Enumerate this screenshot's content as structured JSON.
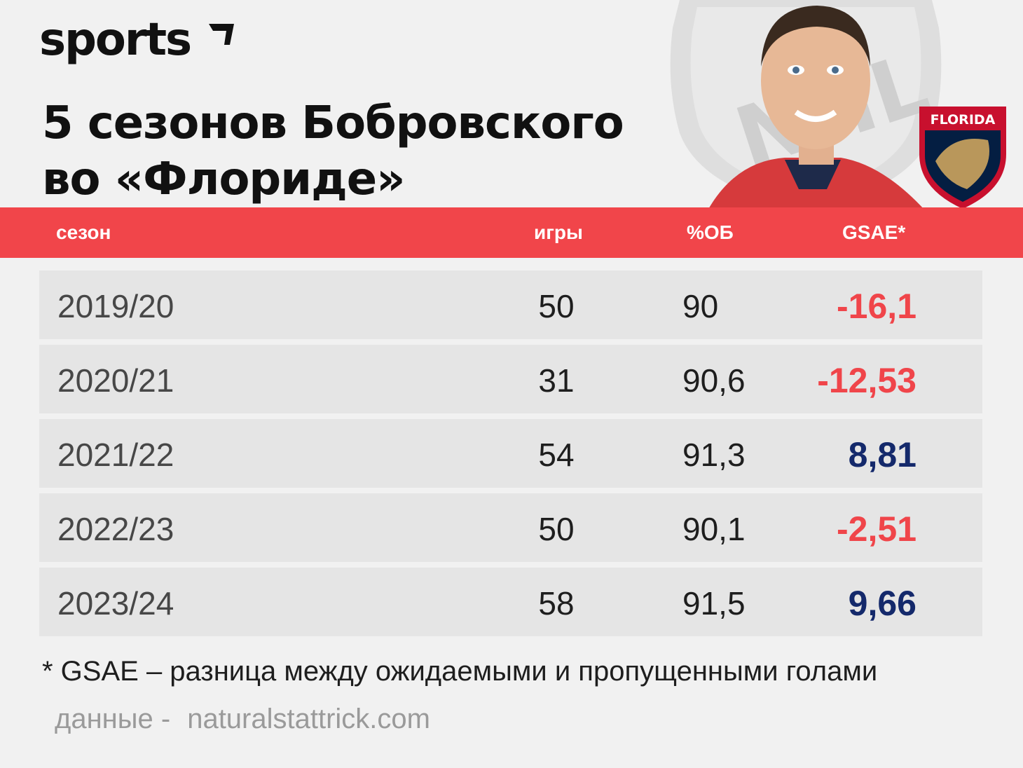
{
  "brand": {
    "logo_text": "sports"
  },
  "title": {
    "line1": "5 сезонов Бобровского",
    "line2": "во «Флориде»"
  },
  "badges": {
    "team_crest_text": "FLORIDA",
    "league_text": "NHL"
  },
  "colors": {
    "accent": "#f1454a",
    "negative": "#f0454a",
    "positive": "#14296b",
    "row_bg": "#e5e5e5"
  },
  "chart_data": {
    "type": "table",
    "columns": [
      "сезон",
      "игры",
      "%ОБ",
      "GSAE*"
    ],
    "rows": [
      {
        "season": "2019/20",
        "games": "50",
        "sv": "90",
        "gsae": "-16,1",
        "gsae_value": -16.1
      },
      {
        "season": "2020/21",
        "games": "31",
        "sv": "90,6",
        "gsae": "-12,53",
        "gsae_value": -12.53
      },
      {
        "season": "2021/22",
        "games": "54",
        "sv": "91,3",
        "gsae": "8,81",
        "gsae_value": 8.81
      },
      {
        "season": "2022/23",
        "games": "50",
        "sv": "90,1",
        "gsae": "-2,51",
        "gsae_value": -2.51
      },
      {
        "season": "2023/24",
        "games": "58",
        "sv": "91,5",
        "gsae": "9,66",
        "gsae_value": 9.66
      }
    ]
  },
  "footnote": "* GSAE – разница между ожидаемыми и пропущенными голами",
  "source": {
    "label": "данные -",
    "site": "naturalstattrick.com"
  }
}
